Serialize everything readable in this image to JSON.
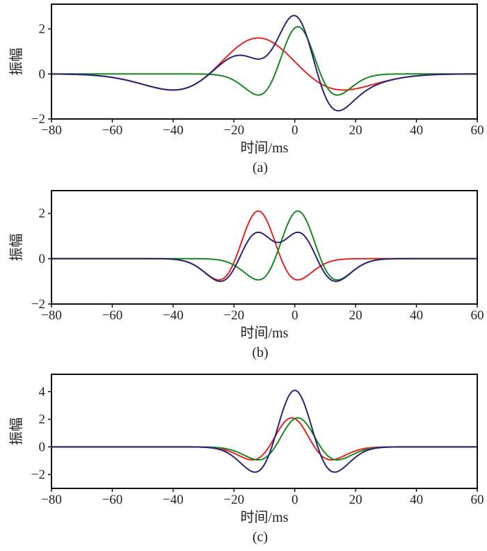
{
  "chart_data": [
    {
      "type": "line",
      "caption": "(a)",
      "xlabel": "时间/ms",
      "ylabel": "振幅",
      "xlim": [
        -80,
        60
      ],
      "ylim": [
        -2,
        3.1
      ],
      "xticks": [
        -80,
        -60,
        -40,
        -20,
        0,
        20,
        40,
        60
      ],
      "yticks": [
        -2,
        0,
        2
      ],
      "series": [
        {
          "name": "red",
          "color": "#e52420",
          "model": "ricker",
          "amplitude": 1.6,
          "center_ms": -12,
          "width_ms": 22.9
        },
        {
          "name": "green",
          "color": "#16891e",
          "model": "ricker",
          "amplitude": 2.1,
          "center_ms": 1,
          "width_ms": 10.6
        },
        {
          "name": "blue",
          "color": "#2b2276",
          "model": "sum",
          "of": [
            "red",
            "green"
          ]
        }
      ]
    },
    {
      "type": "line",
      "caption": "(b)",
      "xlabel": "时间/ms",
      "ylabel": "振幅",
      "xlim": [
        -80,
        60
      ],
      "ylim": [
        -2,
        3.0
      ],
      "xticks": [
        -80,
        -60,
        -40,
        -20,
        0,
        20,
        40,
        60
      ],
      "yticks": [
        -2,
        0,
        2
      ],
      "series": [
        {
          "name": "red",
          "color": "#e52420",
          "model": "ricker",
          "amplitude": 2.1,
          "center_ms": -12,
          "width_ms": 10.6
        },
        {
          "name": "green",
          "color": "#16891e",
          "model": "ricker",
          "amplitude": 2.1,
          "center_ms": 1,
          "width_ms": 10.6
        },
        {
          "name": "blue",
          "color": "#2b2276",
          "model": "sum",
          "of": [
            "red",
            "green"
          ]
        }
      ]
    },
    {
      "type": "line",
      "caption": "(c)",
      "xlabel": "时间/ms",
      "ylabel": "振幅",
      "xlim": [
        -80,
        60
      ],
      "ylim": [
        -3,
        5.25
      ],
      "xticks": [
        -80,
        -60,
        -40,
        -20,
        0,
        20,
        40,
        60
      ],
      "yticks": [
        -2,
        0,
        2,
        4
      ],
      "series": [
        {
          "name": "red",
          "color": "#e52420",
          "model": "ricker",
          "amplitude": 2.1,
          "center_ms": -1,
          "width_ms": 10.6
        },
        {
          "name": "green",
          "color": "#16891e",
          "model": "ricker",
          "amplitude": 2.1,
          "center_ms": 1,
          "width_ms": 10.6
        },
        {
          "name": "blue",
          "color": "#2b2276",
          "model": "sum",
          "of": [
            "red",
            "green"
          ]
        }
      ]
    }
  ]
}
